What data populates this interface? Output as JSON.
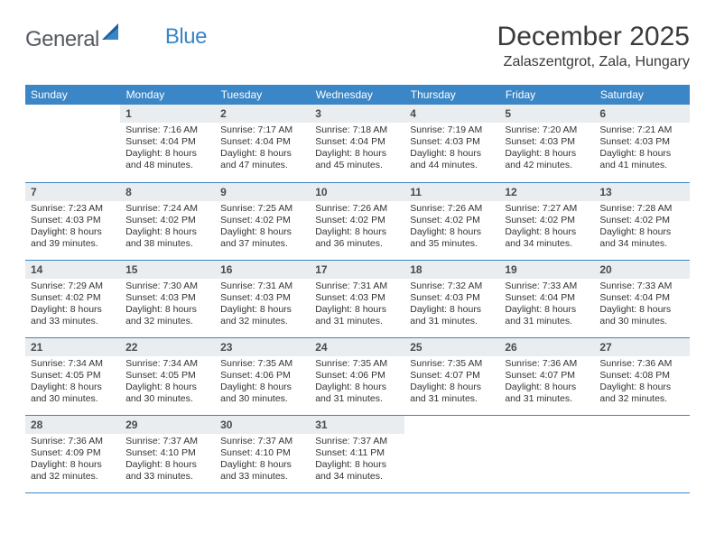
{
  "brand": {
    "part1": "General",
    "part2": "Blue"
  },
  "title": "December 2025",
  "location": "Zalaszentgrot, Zala, Hungary",
  "colors": {
    "header_bg": "#3b86c6",
    "header_fg": "#ffffff",
    "daynum_bg": "#e9edf0",
    "rule": "#3b86c6",
    "text": "#333333",
    "page_bg": "#ffffff"
  },
  "weekdays": [
    "Sunday",
    "Monday",
    "Tuesday",
    "Wednesday",
    "Thursday",
    "Friday",
    "Saturday"
  ],
  "weeks": [
    [
      {
        "n": "",
        "lines": []
      },
      {
        "n": "1",
        "lines": [
          "Sunrise: 7:16 AM",
          "Sunset: 4:04 PM",
          "Daylight: 8 hours",
          "and 48 minutes."
        ]
      },
      {
        "n": "2",
        "lines": [
          "Sunrise: 7:17 AM",
          "Sunset: 4:04 PM",
          "Daylight: 8 hours",
          "and 47 minutes."
        ]
      },
      {
        "n": "3",
        "lines": [
          "Sunrise: 7:18 AM",
          "Sunset: 4:04 PM",
          "Daylight: 8 hours",
          "and 45 minutes."
        ]
      },
      {
        "n": "4",
        "lines": [
          "Sunrise: 7:19 AM",
          "Sunset: 4:03 PM",
          "Daylight: 8 hours",
          "and 44 minutes."
        ]
      },
      {
        "n": "5",
        "lines": [
          "Sunrise: 7:20 AM",
          "Sunset: 4:03 PM",
          "Daylight: 8 hours",
          "and 42 minutes."
        ]
      },
      {
        "n": "6",
        "lines": [
          "Sunrise: 7:21 AM",
          "Sunset: 4:03 PM",
          "Daylight: 8 hours",
          "and 41 minutes."
        ]
      }
    ],
    [
      {
        "n": "7",
        "lines": [
          "Sunrise: 7:23 AM",
          "Sunset: 4:03 PM",
          "Daylight: 8 hours",
          "and 39 minutes."
        ]
      },
      {
        "n": "8",
        "lines": [
          "Sunrise: 7:24 AM",
          "Sunset: 4:02 PM",
          "Daylight: 8 hours",
          "and 38 minutes."
        ]
      },
      {
        "n": "9",
        "lines": [
          "Sunrise: 7:25 AM",
          "Sunset: 4:02 PM",
          "Daylight: 8 hours",
          "and 37 minutes."
        ]
      },
      {
        "n": "10",
        "lines": [
          "Sunrise: 7:26 AM",
          "Sunset: 4:02 PM",
          "Daylight: 8 hours",
          "and 36 minutes."
        ]
      },
      {
        "n": "11",
        "lines": [
          "Sunrise: 7:26 AM",
          "Sunset: 4:02 PM",
          "Daylight: 8 hours",
          "and 35 minutes."
        ]
      },
      {
        "n": "12",
        "lines": [
          "Sunrise: 7:27 AM",
          "Sunset: 4:02 PM",
          "Daylight: 8 hours",
          "and 34 minutes."
        ]
      },
      {
        "n": "13",
        "lines": [
          "Sunrise: 7:28 AM",
          "Sunset: 4:02 PM",
          "Daylight: 8 hours",
          "and 34 minutes."
        ]
      }
    ],
    [
      {
        "n": "14",
        "lines": [
          "Sunrise: 7:29 AM",
          "Sunset: 4:02 PM",
          "Daylight: 8 hours",
          "and 33 minutes."
        ]
      },
      {
        "n": "15",
        "lines": [
          "Sunrise: 7:30 AM",
          "Sunset: 4:03 PM",
          "Daylight: 8 hours",
          "and 32 minutes."
        ]
      },
      {
        "n": "16",
        "lines": [
          "Sunrise: 7:31 AM",
          "Sunset: 4:03 PM",
          "Daylight: 8 hours",
          "and 32 minutes."
        ]
      },
      {
        "n": "17",
        "lines": [
          "Sunrise: 7:31 AM",
          "Sunset: 4:03 PM",
          "Daylight: 8 hours",
          "and 31 minutes."
        ]
      },
      {
        "n": "18",
        "lines": [
          "Sunrise: 7:32 AM",
          "Sunset: 4:03 PM",
          "Daylight: 8 hours",
          "and 31 minutes."
        ]
      },
      {
        "n": "19",
        "lines": [
          "Sunrise: 7:33 AM",
          "Sunset: 4:04 PM",
          "Daylight: 8 hours",
          "and 31 minutes."
        ]
      },
      {
        "n": "20",
        "lines": [
          "Sunrise: 7:33 AM",
          "Sunset: 4:04 PM",
          "Daylight: 8 hours",
          "and 30 minutes."
        ]
      }
    ],
    [
      {
        "n": "21",
        "lines": [
          "Sunrise: 7:34 AM",
          "Sunset: 4:05 PM",
          "Daylight: 8 hours",
          "and 30 minutes."
        ]
      },
      {
        "n": "22",
        "lines": [
          "Sunrise: 7:34 AM",
          "Sunset: 4:05 PM",
          "Daylight: 8 hours",
          "and 30 minutes."
        ]
      },
      {
        "n": "23",
        "lines": [
          "Sunrise: 7:35 AM",
          "Sunset: 4:06 PM",
          "Daylight: 8 hours",
          "and 30 minutes."
        ]
      },
      {
        "n": "24",
        "lines": [
          "Sunrise: 7:35 AM",
          "Sunset: 4:06 PM",
          "Daylight: 8 hours",
          "and 31 minutes."
        ]
      },
      {
        "n": "25",
        "lines": [
          "Sunrise: 7:35 AM",
          "Sunset: 4:07 PM",
          "Daylight: 8 hours",
          "and 31 minutes."
        ]
      },
      {
        "n": "26",
        "lines": [
          "Sunrise: 7:36 AM",
          "Sunset: 4:07 PM",
          "Daylight: 8 hours",
          "and 31 minutes."
        ]
      },
      {
        "n": "27",
        "lines": [
          "Sunrise: 7:36 AM",
          "Sunset: 4:08 PM",
          "Daylight: 8 hours",
          "and 32 minutes."
        ]
      }
    ],
    [
      {
        "n": "28",
        "lines": [
          "Sunrise: 7:36 AM",
          "Sunset: 4:09 PM",
          "Daylight: 8 hours",
          "and 32 minutes."
        ]
      },
      {
        "n": "29",
        "lines": [
          "Sunrise: 7:37 AM",
          "Sunset: 4:10 PM",
          "Daylight: 8 hours",
          "and 33 minutes."
        ]
      },
      {
        "n": "30",
        "lines": [
          "Sunrise: 7:37 AM",
          "Sunset: 4:10 PM",
          "Daylight: 8 hours",
          "and 33 minutes."
        ]
      },
      {
        "n": "31",
        "lines": [
          "Sunrise: 7:37 AM",
          "Sunset: 4:11 PM",
          "Daylight: 8 hours",
          "and 34 minutes."
        ]
      },
      {
        "n": "",
        "lines": []
      },
      {
        "n": "",
        "lines": []
      },
      {
        "n": "",
        "lines": []
      }
    ]
  ]
}
